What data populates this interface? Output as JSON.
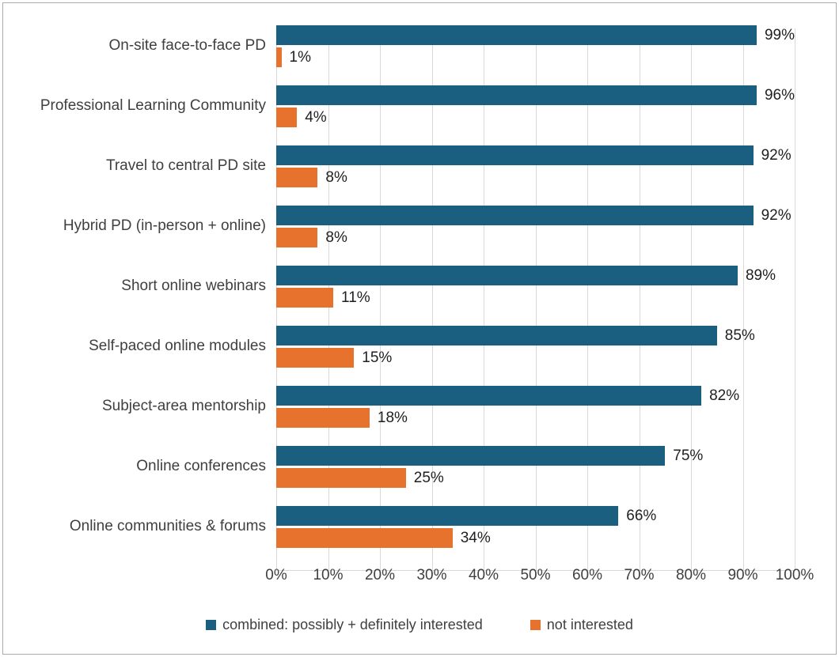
{
  "chart_data": {
    "type": "bar",
    "orientation": "horizontal",
    "title": "",
    "categories": [
      "On-site face-to-face PD",
      "Professional Learning Community",
      "Travel to central PD site",
      "Hybrid PD (in-person + online)",
      "Short online webinars",
      "Self-paced online modules",
      "Subject-area mentorship",
      "Online conferences",
      "Online communities & forums"
    ],
    "series": [
      {
        "name": "combined: possibly + definitely interested",
        "color": "#1A5E80",
        "values": [
          99,
          96,
          92,
          92,
          89,
          85,
          82,
          75,
          66
        ],
        "labels": [
          "99%",
          "96%",
          "92%",
          "92%",
          "89%",
          "85%",
          "82%",
          "75%",
          "66%"
        ]
      },
      {
        "name": "not interested",
        "color": "#E7722D",
        "values": [
          1,
          4,
          8,
          8,
          11,
          15,
          18,
          25,
          34
        ],
        "labels": [
          "1%",
          "4%",
          "8%",
          "8%",
          "11%",
          "15%",
          "18%",
          "25%",
          "34%"
        ]
      }
    ],
    "xlim": [
      0,
      100
    ],
    "x_ticks": [
      "0%",
      "10%",
      "20%",
      "30%",
      "40%",
      "50%",
      "60%",
      "70%",
      "80%",
      "90%",
      "100%"
    ],
    "grid": "vertical",
    "gridline_color": "#D9D9D9",
    "axis_text_color": "#404040",
    "value_label_color": "#1F1F1F",
    "legend_position": "bottom"
  }
}
